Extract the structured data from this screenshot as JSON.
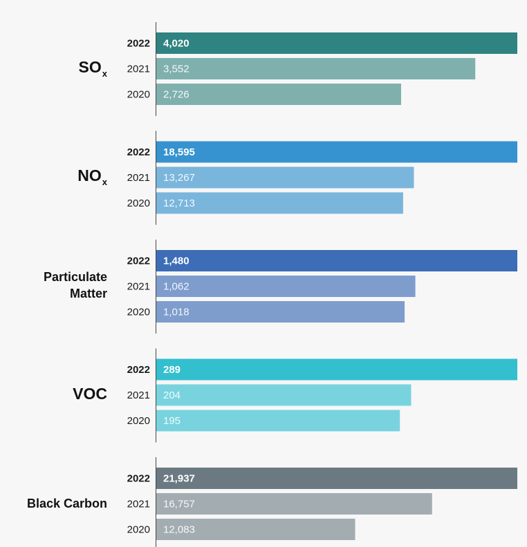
{
  "chart_data": {
    "type": "bar",
    "orientation": "horizontal",
    "years": [
      "2022",
      "2021",
      "2020"
    ],
    "groups": [
      {
        "name": "SO",
        "subscript": "x",
        "values": {
          "2022": 4020,
          "2021": 3552,
          "2020": 2726
        },
        "labels": {
          "2022": "4,020",
          "2021": "3,552",
          "2020": "2,726"
        },
        "color_highlight": "#2f8381",
        "color_light": "#7fb0ae"
      },
      {
        "name": "NO",
        "subscript": "x",
        "values": {
          "2022": 18595,
          "2021": 13267,
          "2020": 12713
        },
        "labels": {
          "2022": "18,595",
          "2021": "13,267",
          "2020": "12,713"
        },
        "color_highlight": "#3793cf",
        "color_light": "#7ab5dc"
      },
      {
        "name": "Particulate Matter",
        "subscript": "",
        "values": {
          "2022": 1480,
          "2021": 1062,
          "2020": 1018
        },
        "labels": {
          "2022": "1,480",
          "2021": "1,062",
          "2020": "1,018"
        },
        "color_highlight": "#3d6db6",
        "color_light": "#7e9dcd"
      },
      {
        "name": "VOC",
        "subscript": "",
        "values": {
          "2022": 289,
          "2021": 204,
          "2020": 195
        },
        "labels": {
          "2022": "289",
          "2021": "204",
          "2020": "195"
        },
        "color_highlight": "#33bfce",
        "color_light": "#78d3df"
      },
      {
        "name": "Black Carbon",
        "subscript": "",
        "values": {
          "2022": 21937,
          "2021": 16757,
          "2020": 12083
        },
        "labels": {
          "2022": "21,937",
          "2021": "16,757",
          "2020": "12,083"
        },
        "color_highlight": "#6b7a82",
        "color_light": "#a3adb1"
      }
    ],
    "scale": "each group scaled to its own 2022 value",
    "grid": false,
    "legend": "none"
  }
}
